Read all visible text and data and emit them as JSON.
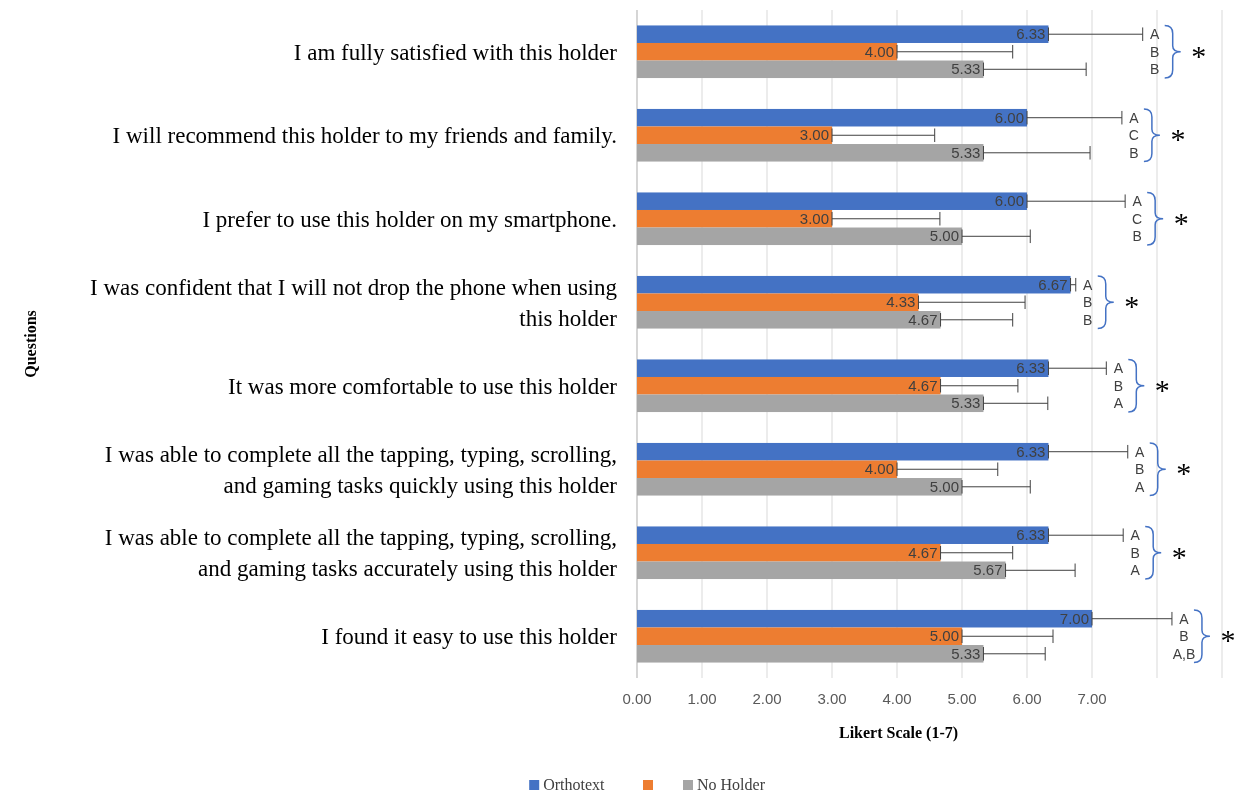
{
  "chart_data": {
    "type": "bar",
    "orientation": "horizontal",
    "categories": [
      "I am fully satisfied with this holder",
      "I will recommend this holder to my friends and family.",
      "I prefer to use this holder on my smartphone.",
      "I was confident that I will not drop the phone when using this holder",
      "It was more comfortable to use this holder",
      "I was able to complete all the tapping, typing, scrolling, and gaming tasks quickly  using this holder",
      "I was able to complete all the tapping, typing, scrolling, and gaming tasks accurately using this holder",
      "I found it easy to use this holder"
    ],
    "series": [
      {
        "name": "Orthotext",
        "color": "#4472c4",
        "values": [
          6.33,
          6.0,
          6.0,
          6.67,
          6.33,
          6.33,
          6.33,
          7.0
        ],
        "value_labels": [
          "6.33",
          "6.00",
          "6.00",
          "6.67",
          "6.33",
          "6.33",
          "6.33",
          "7.00"
        ],
        "errors": [
          [
            6.33,
            7.78
          ],
          [
            6.0,
            7.46
          ],
          [
            6.0,
            7.51
          ],
          [
            6.67,
            6.75
          ],
          [
            6.33,
            7.22
          ],
          [
            6.33,
            7.55
          ],
          [
            6.33,
            7.48
          ],
          [
            7.0,
            8.23
          ]
        ]
      },
      {
        "color": "#ed7d31",
        "values": [
          4.0,
          3.0,
          3.0,
          4.33,
          4.67,
          4.0,
          4.67,
          5.0
        ],
        "value_labels": [
          "4.00",
          "3.00",
          "3.00",
          "4.33",
          "4.67",
          "4.00",
          "4.67",
          "5.00"
        ],
        "errors": [
          [
            4.0,
            5.78
          ],
          [
            3.0,
            4.58
          ],
          [
            3.0,
            4.66
          ],
          [
            4.33,
            5.97
          ],
          [
            4.67,
            5.86
          ],
          [
            4.0,
            5.55
          ],
          [
            4.67,
            5.78
          ],
          [
            5.0,
            6.4
          ]
        ]
      },
      {
        "name": "No Holder",
        "color": "#a5a5a5",
        "values": [
          5.33,
          5.33,
          5.0,
          4.67,
          5.33,
          5.0,
          5.67,
          5.33
        ],
        "value_labels": [
          "5.33",
          "5.33",
          "5.00",
          "4.67",
          "5.33",
          "5.00",
          "5.67",
          "5.33"
        ],
        "errors": [
          [
            5.33,
            6.91
          ],
          [
            5.33,
            6.97
          ],
          [
            5.0,
            6.05
          ],
          [
            4.67,
            5.78
          ],
          [
            5.33,
            6.32
          ],
          [
            5.0,
            6.05
          ],
          [
            5.67,
            6.74
          ],
          [
            5.33,
            6.28
          ]
        ]
      }
    ],
    "xlim": [
      0,
      9
    ],
    "xticks": [
      {
        "value": 0,
        "label": "0.00"
      },
      {
        "value": 1,
        "label": "1.00"
      },
      {
        "value": 2,
        "label": "2.00"
      },
      {
        "value": 3,
        "label": "3.00"
      },
      {
        "value": 4,
        "label": "4.00"
      },
      {
        "value": 5,
        "label": "5.00"
      },
      {
        "value": 6,
        "label": "6.00"
      },
      {
        "value": 7,
        "label": "7.00"
      },
      {
        "value": 8,
        "label": null
      },
      {
        "value": 9,
        "label": null
      }
    ],
    "xlabel": "Likert Scale  (1-7)",
    "ylabel": "Questions",
    "grid": "x",
    "legend": "bottom",
    "annotations": [
      "A",
      "B",
      "B",
      "*",
      "A",
      "C",
      "B",
      "*",
      "A",
      "C",
      "B",
      "*",
      "A",
      "B",
      "B",
      "*",
      "A",
      "B",
      "A",
      "*",
      "A",
      "B",
      "A",
      "*",
      "A",
      "B",
      "A",
      "*",
      "A",
      "B",
      "A,B",
      "*"
    ]
  }
}
